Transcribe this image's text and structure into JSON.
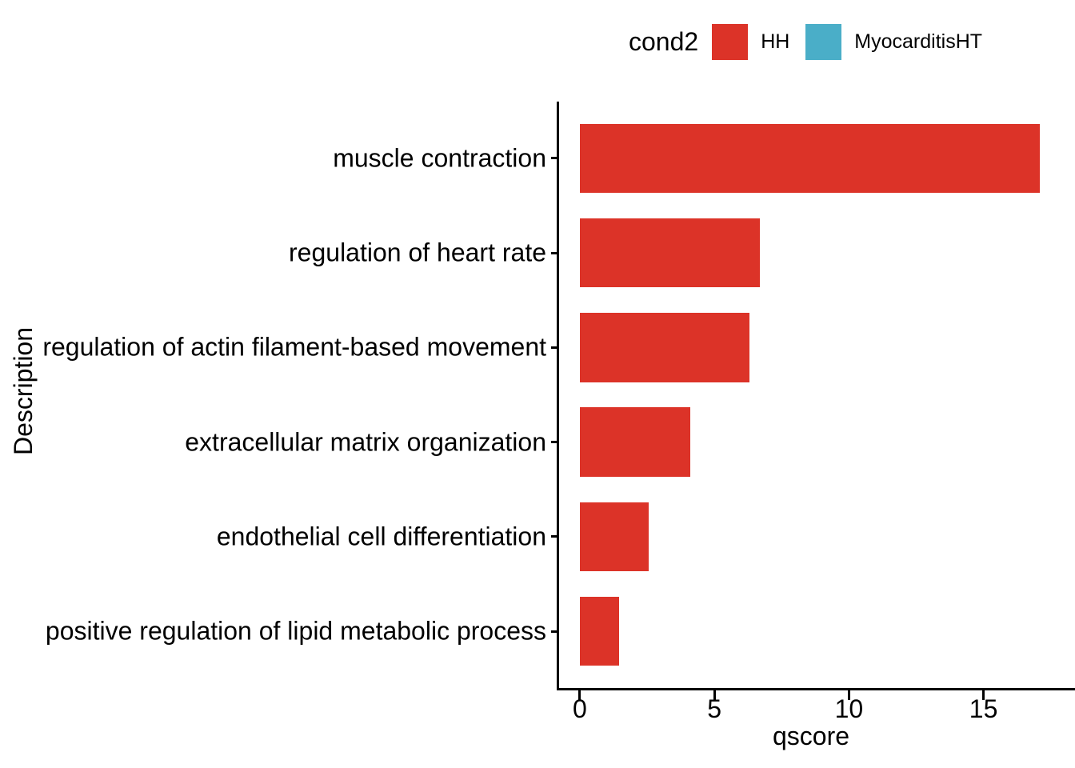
{
  "chart_data": {
    "type": "bar",
    "orientation": "horizontal",
    "title": "",
    "xlabel": "qscore",
    "ylabel": "Description",
    "categories": [
      "muscle contraction",
      "regulation of heart rate",
      "regulation of actin filament-based movement",
      "extracellular matrix organization",
      "endothelial cell differentiation",
      "positive regulation of lipid metabolic process"
    ],
    "series": [
      {
        "name": "HH",
        "color": "#DC3328",
        "values": [
          17.1,
          6.7,
          6.3,
          4.1,
          2.55,
          1.45
        ]
      }
    ],
    "x_ticks": [
      0,
      5,
      10,
      15
    ],
    "xlim": [
      -0.8,
      18.4
    ],
    "grid": false,
    "legend": {
      "title": "cond2",
      "position": "top",
      "entries": [
        {
          "label": "HH",
          "color": "#DC3328"
        },
        {
          "label": "MyocarditisHT",
          "color": "#4AAEC8"
        }
      ]
    },
    "axis_color": "#000000",
    "text_color": "#000000",
    "background": "#ffffff"
  }
}
